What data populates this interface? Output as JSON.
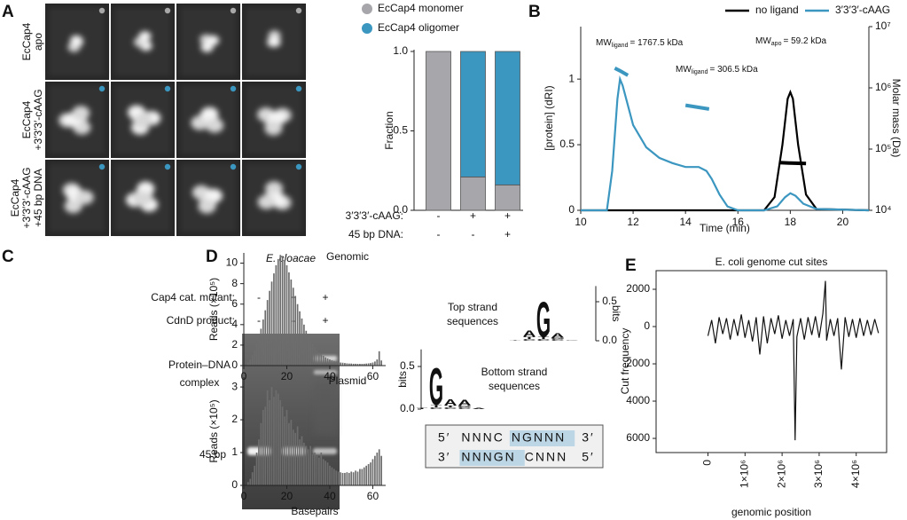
{
  "panels": [
    "A",
    "B",
    "C",
    "D",
    "E"
  ],
  "image_rows": [
    {
      "label_lines": [
        "EcCap4",
        "apo"
      ],
      "marker_color": "#a8a8a8"
    },
    {
      "label_lines": [
        "EcCap4",
        "+3′3′3′-cAAG"
      ],
      "marker_color": "#3b96c0"
    },
    {
      "label_lines": [
        "EcCap4",
        "+3′3′3′-cAAG",
        "+45 bp DNA"
      ],
      "marker_color": "#3b96c0"
    }
  ],
  "gel": {
    "title": "E. cloacae",
    "rows": [
      {
        "label": "Cap4 cat. mutant:",
        "values": [
          "-",
          "+",
          "+"
        ]
      },
      {
        "label": "CdnD product:",
        "values": [
          "-",
          "-",
          "+"
        ]
      }
    ],
    "complex_label": [
      "Protein–DNA",
      "complex"
    ],
    "band_label": "45 bp"
  },
  "sequence_box": {
    "rows": [
      [
        {
          "text": "5′"
        },
        {
          "text": "NNNC"
        },
        {
          "text": "NGNNN",
          "highlight": true
        },
        {
          "text": "3′"
        }
      ],
      [
        {
          "text": "3′"
        },
        {
          "text": "NNNGN",
          "highlight": true
        },
        {
          "text": "CNNN"
        },
        {
          "text": "5′"
        }
      ]
    ]
  },
  "chart_data": [
    {
      "type": "stacked-bar",
      "ylabel": "Fraction",
      "categories": [
        null,
        null,
        null
      ],
      "series": [
        {
          "name": "EcCap4 monomer",
          "color": "#a6a6ab",
          "values": [
            1.0,
            0.21,
            0.16
          ]
        },
        {
          "name": "EcCap4 oligomer",
          "color": "#3b96c0",
          "values": [
            0,
            0.79,
            0.84
          ]
        }
      ],
      "ylim": [
        0,
        1
      ],
      "yticks": [
        {
          "value": 0,
          "label": "0.0"
        },
        0.5,
        {
          "value": 1,
          "label": "1.0"
        }
      ],
      "conditions": [
        {
          "label": "3′3′3′-cAAG:",
          "values": [
            "-",
            "+",
            "+"
          ]
        },
        {
          "label": "45 bp DNA:",
          "values": [
            "-",
            "-",
            "+"
          ]
        }
      ]
    },
    {
      "type": "line",
      "xlabel": "Time (min)",
      "ylabel": "[protein] (dRI)",
      "y2label": "Molar mass (Da)",
      "xlim": [
        10,
        21
      ],
      "xticks": [
        10,
        12,
        14,
        16,
        18,
        20
      ],
      "ylim": [
        0,
        1.4
      ],
      "yticks": [
        0,
        0.5,
        1
      ],
      "y2lim": [
        10000,
        10000000
      ],
      "y2log": true,
      "y2ticks": [
        {
          "value": 10000,
          "label": "10⁴"
        },
        {
          "value": 100000,
          "label": "10⁵"
        },
        {
          "value": 1000000,
          "label": "10⁶"
        },
        {
          "value": 10000000,
          "label": "10⁷"
        }
      ],
      "series": [
        {
          "name": "no ligand",
          "color": "#000000",
          "x": [
            10,
            17,
            17.4,
            17.7,
            17.9,
            18,
            18.1,
            18.3,
            18.6,
            19,
            21
          ],
          "values": [
            0,
            0,
            0.1,
            0.5,
            0.85,
            0.9,
            0.85,
            0.5,
            0.12,
            0.01,
            0
          ]
        },
        {
          "name": "3′3′3′-cAAG",
          "color": "#3b96c0",
          "x": [
            10,
            11,
            11.2,
            11.4,
            11.5,
            11.6,
            11.8,
            12,
            12.5,
            13,
            13.5,
            14,
            14.5,
            14.8,
            15,
            15.3,
            15.6,
            16,
            17,
            17.5,
            17.8,
            18,
            18.2,
            18.5,
            19,
            21
          ],
          "values": [
            0,
            0,
            0.3,
            0.85,
            1.0,
            0.95,
            0.8,
            0.65,
            0.48,
            0.4,
            0.36,
            0.33,
            0.33,
            0.3,
            0.24,
            0.12,
            0.03,
            0,
            0,
            0.03,
            0.1,
            0.13,
            0.11,
            0.05,
            0.01,
            0
          ]
        },
        {
          "color": "#3b96c0",
          "axis": "y2",
          "x": [
            11.3,
            11.5,
            11.8
          ],
          "values": [
            2100000,
            1900000,
            1600000
          ]
        },
        {
          "color": "#3b96c0",
          "axis": "y2",
          "x": [
            14.0,
            14.5,
            14.9
          ],
          "values": [
            520000,
            480000,
            450000
          ]
        },
        {
          "color": "#000000",
          "axis": "y2",
          "x": [
            17.6,
            18,
            18.6
          ],
          "values": [
            60000,
            59000,
            58000
          ]
        }
      ],
      "annotations": [
        {
          "main": "MW",
          "sub": "ligand",
          "text": "= 1767.5 kDa"
        },
        {
          "main": "MW",
          "sub": "ligand",
          "text": "= 306.5 kDa"
        },
        {
          "main": "MW",
          "sub": "apo",
          "text": "= 59.2 kDa"
        }
      ]
    },
    {
      "type": "histogram",
      "title": "Genomic",
      "ylabel": "Reads (×10⁵)",
      "color": "#6d6d6d",
      "x": [
        2,
        3,
        4,
        5,
        6,
        7,
        8,
        9,
        10,
        11,
        12,
        13,
        14,
        15,
        16,
        17,
        18,
        19,
        20,
        21,
        22,
        23,
        24,
        25,
        26,
        27,
        28,
        29,
        30,
        31,
        32,
        33,
        34,
        35,
        36,
        37,
        38,
        39,
        40,
        41,
        42,
        43,
        44,
        45,
        46,
        47,
        48,
        49,
        50,
        51,
        52,
        53,
        54,
        55,
        56,
        57,
        58,
        59,
        60,
        61,
        62,
        63,
        64
      ],
      "values": [
        0.3,
        0.6,
        1.0,
        1.5,
        2.1,
        2.8,
        3.6,
        4.5,
        5.4,
        6.4,
        7.3,
        8.2,
        9.0,
        9.8,
        10.4,
        10.8,
        10.7,
        10.3,
        9.8,
        9.1,
        8.4,
        7.6,
        6.8,
        6.0,
        5.3,
        4.6,
        4.0,
        3.4,
        2.9,
        2.5,
        2.1,
        1.8,
        1.5,
        1.3,
        1.1,
        0.95,
        0.8,
        0.7,
        0.6,
        0.52,
        0.45,
        0.4,
        0.35,
        0.3,
        0.28,
        0.25,
        0.22,
        0.2,
        0.2,
        0.18,
        0.18,
        0.17,
        0.17,
        0.17,
        0.18,
        0.2,
        0.22,
        0.25,
        0.3,
        0.4,
        0.6,
        1.4,
        0.5
      ],
      "xlim": [
        0,
        66
      ],
      "xticks": [
        0,
        20,
        40,
        60
      ],
      "ylim": [
        0,
        11
      ],
      "yticks": [
        0,
        2,
        4,
        6,
        8,
        10
      ]
    },
    {
      "type": "histogram",
      "title": "Plasmid",
      "ylabel": "Reads (×10⁵)",
      "xlabel": "Basepairs",
      "color": "#6d6d6d",
      "x": [
        2,
        3,
        4,
        5,
        6,
        7,
        8,
        9,
        10,
        11,
        12,
        13,
        14,
        15,
        16,
        17,
        18,
        19,
        20,
        21,
        22,
        23,
        24,
        25,
        26,
        27,
        28,
        29,
        30,
        31,
        32,
        33,
        34,
        35,
        36,
        37,
        38,
        39,
        40,
        41,
        42,
        43,
        44,
        45,
        46,
        47,
        48,
        49,
        50,
        51,
        52,
        53,
        54,
        55,
        56,
        57,
        58,
        59,
        60,
        61,
        62,
        63,
        64
      ],
      "values": [
        0.1,
        0.2,
        0.4,
        0.6,
        1.0,
        1.4,
        1.9,
        2.3,
        2.4,
        2.9,
        2.6,
        3.0,
        2.7,
        2.9,
        2.8,
        2.6,
        2.4,
        2.1,
        2.3,
        1.9,
        2.0,
        1.7,
        1.6,
        1.8,
        1.4,
        1.5,
        1.3,
        1.2,
        1.1,
        1.2,
        0.95,
        1.0,
        0.9,
        0.85,
        1.0,
        0.8,
        0.75,
        0.7,
        0.6,
        0.55,
        0.5,
        0.45,
        0.42,
        0.4,
        0.38,
        0.38,
        0.4,
        0.38,
        0.42,
        0.4,
        0.45,
        0.42,
        0.5,
        0.5,
        0.55,
        0.6,
        0.65,
        0.7,
        0.8,
        0.9,
        1.0,
        1.1,
        0.9
      ],
      "xlim": [
        0,
        66
      ],
      "xticks": [
        0,
        20,
        40,
        60
      ],
      "ylim": [
        0,
        3.3
      ],
      "yticks": [
        0,
        1,
        2,
        3
      ]
    },
    {
      "type": "logo",
      "title_lines": [
        "Top strand",
        "sequences"
      ],
      "ylabel": "bits",
      "axis_side": "right",
      "ylim": [
        0,
        0.7
      ],
      "yticks": [
        {
          "value": 0,
          "label": "0.0"
        },
        0.5
      ],
      "letter_colors": {
        "A": "#f0900a",
        "C": "#2f55d4",
        "G": "#1f2fd0",
        "T": "#e07010"
      },
      "positions": [
        [
          {
            "letter": "T",
            "bits": 0.01
          }
        ],
        [
          {
            "letter": "C",
            "bits": 0.02
          },
          {
            "letter": "T",
            "bits": 0.03
          },
          {
            "letter": "A",
            "bits": 0.08
          }
        ],
        [
          {
            "letter": "C",
            "bits": 0.02
          },
          {
            "letter": "T",
            "bits": 0.03
          },
          {
            "letter": "G",
            "bits": 0.47
          }
        ],
        [
          {
            "letter": "C",
            "bits": 0.02
          },
          {
            "letter": "G",
            "bits": 0.02
          },
          {
            "letter": "A",
            "bits": 0.06
          }
        ],
        [
          {
            "letter": "C",
            "bits": 0.01
          }
        ]
      ]
    },
    {
      "type": "logo",
      "title_lines": [
        "Bottom strand",
        "sequences"
      ],
      "ylabel": "bits",
      "axis_side": "left",
      "ylim": [
        0,
        0.7
      ],
      "yticks": [
        {
          "value": 0,
          "label": "0.0"
        },
        0.5
      ],
      "letter_colors": {
        "A": "#f0900a",
        "C": "#2f55d4",
        "G": "#1f2fd0",
        "T": "#e07010"
      },
      "positions": [
        [
          {
            "letter": "T",
            "bits": 0.01
          }
        ],
        [
          {
            "letter": "C",
            "bits": 0.02
          },
          {
            "letter": "T",
            "bits": 0.03
          },
          {
            "letter": "G",
            "bits": 0.45
          }
        ],
        [
          {
            "letter": "C",
            "bits": 0.02
          },
          {
            "letter": "T",
            "bits": 0.02
          },
          {
            "letter": "A",
            "bits": 0.08
          }
        ],
        [
          {
            "letter": "C",
            "bits": 0.02
          },
          {
            "letter": "G",
            "bits": 0.02
          },
          {
            "letter": "A",
            "bits": 0.07
          }
        ],
        [
          {
            "letter": "A",
            "bits": 0.01
          }
        ]
      ]
    },
    {
      "type": "line",
      "title": "E. coli genome cut sites",
      "ylabel": "Cut frequency",
      "xlabel": "genomic position",
      "color": "#111111",
      "x": [
        0,
        100000,
        200000,
        300000,
        400000,
        500000,
        600000,
        700000,
        800000,
        900000,
        1000000,
        1100000,
        1200000,
        1300000,
        1400000,
        1500000,
        1600000,
        1700000,
        1800000,
        1900000,
        2000000,
        2100000,
        2200000,
        2300000,
        2350000,
        2400000,
        2500000,
        2600000,
        2700000,
        2800000,
        2900000,
        3000000,
        3100000,
        3170000,
        3200000,
        3300000,
        3400000,
        3500000,
        3600000,
        3700000,
        3800000,
        3900000,
        4000000,
        4100000,
        4200000,
        4300000,
        4400000,
        4500000,
        4600000
      ],
      "values": [
        -500,
        350,
        -900,
        500,
        -400,
        450,
        -700,
        400,
        -500,
        650,
        -600,
        350,
        -800,
        500,
        -1500,
        550,
        -900,
        450,
        -400,
        600,
        -650,
        350,
        -500,
        400,
        -6100,
        -550,
        450,
        -700,
        500,
        -450,
        550,
        -600,
        700,
        2450,
        -750,
        400,
        -500,
        450,
        -2300,
        500,
        -550,
        400,
        -600,
        450,
        -500,
        350,
        -450,
        400,
        -350
      ],
      "xlim": [
        -1400000,
        4820000
      ],
      "xticks": [
        0,
        {
          "value": 1000000,
          "label": "1×10⁶"
        },
        {
          "value": 2000000,
          "label": "2×10⁶"
        },
        {
          "value": 3000000,
          "label": "3×10⁶"
        },
        {
          "value": 4000000,
          "label": "4×10⁶"
        }
      ],
      "ylim": [
        -6760,
        3000
      ],
      "yticks": [
        {
          "value": -6000,
          "label": "6000"
        },
        {
          "value": -4000,
          "label": "4000"
        },
        {
          "value": -2000,
          "label": "2000"
        },
        0,
        2000
      ]
    }
  ]
}
